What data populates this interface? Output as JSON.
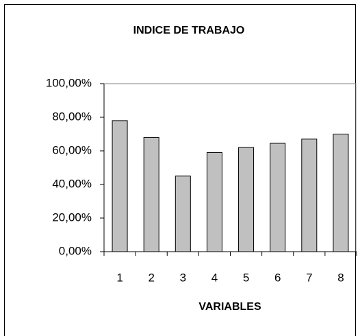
{
  "chart_data": {
    "type": "bar",
    "title": "INDICE DE TRABAJO",
    "xlabel": "VARIABLES",
    "categories": [
      "1",
      "2",
      "3",
      "4",
      "5",
      "6",
      "7",
      "8"
    ],
    "values": [
      78,
      68,
      45,
      59,
      62,
      64.5,
      67,
      70
    ],
    "color": "#c0c0c0",
    "ylim": [
      0,
      100
    ],
    "yticks": [
      {
        "value": 0,
        "label": "0,00%"
      },
      {
        "value": 20,
        "label": "20,00%"
      },
      {
        "value": 40,
        "label": "40,00%"
      },
      {
        "value": 60,
        "label": "60,00%"
      },
      {
        "value": 80,
        "label": "80,00%"
      },
      {
        "value": 100,
        "label": "100,00%"
      }
    ],
    "grid": false
  }
}
